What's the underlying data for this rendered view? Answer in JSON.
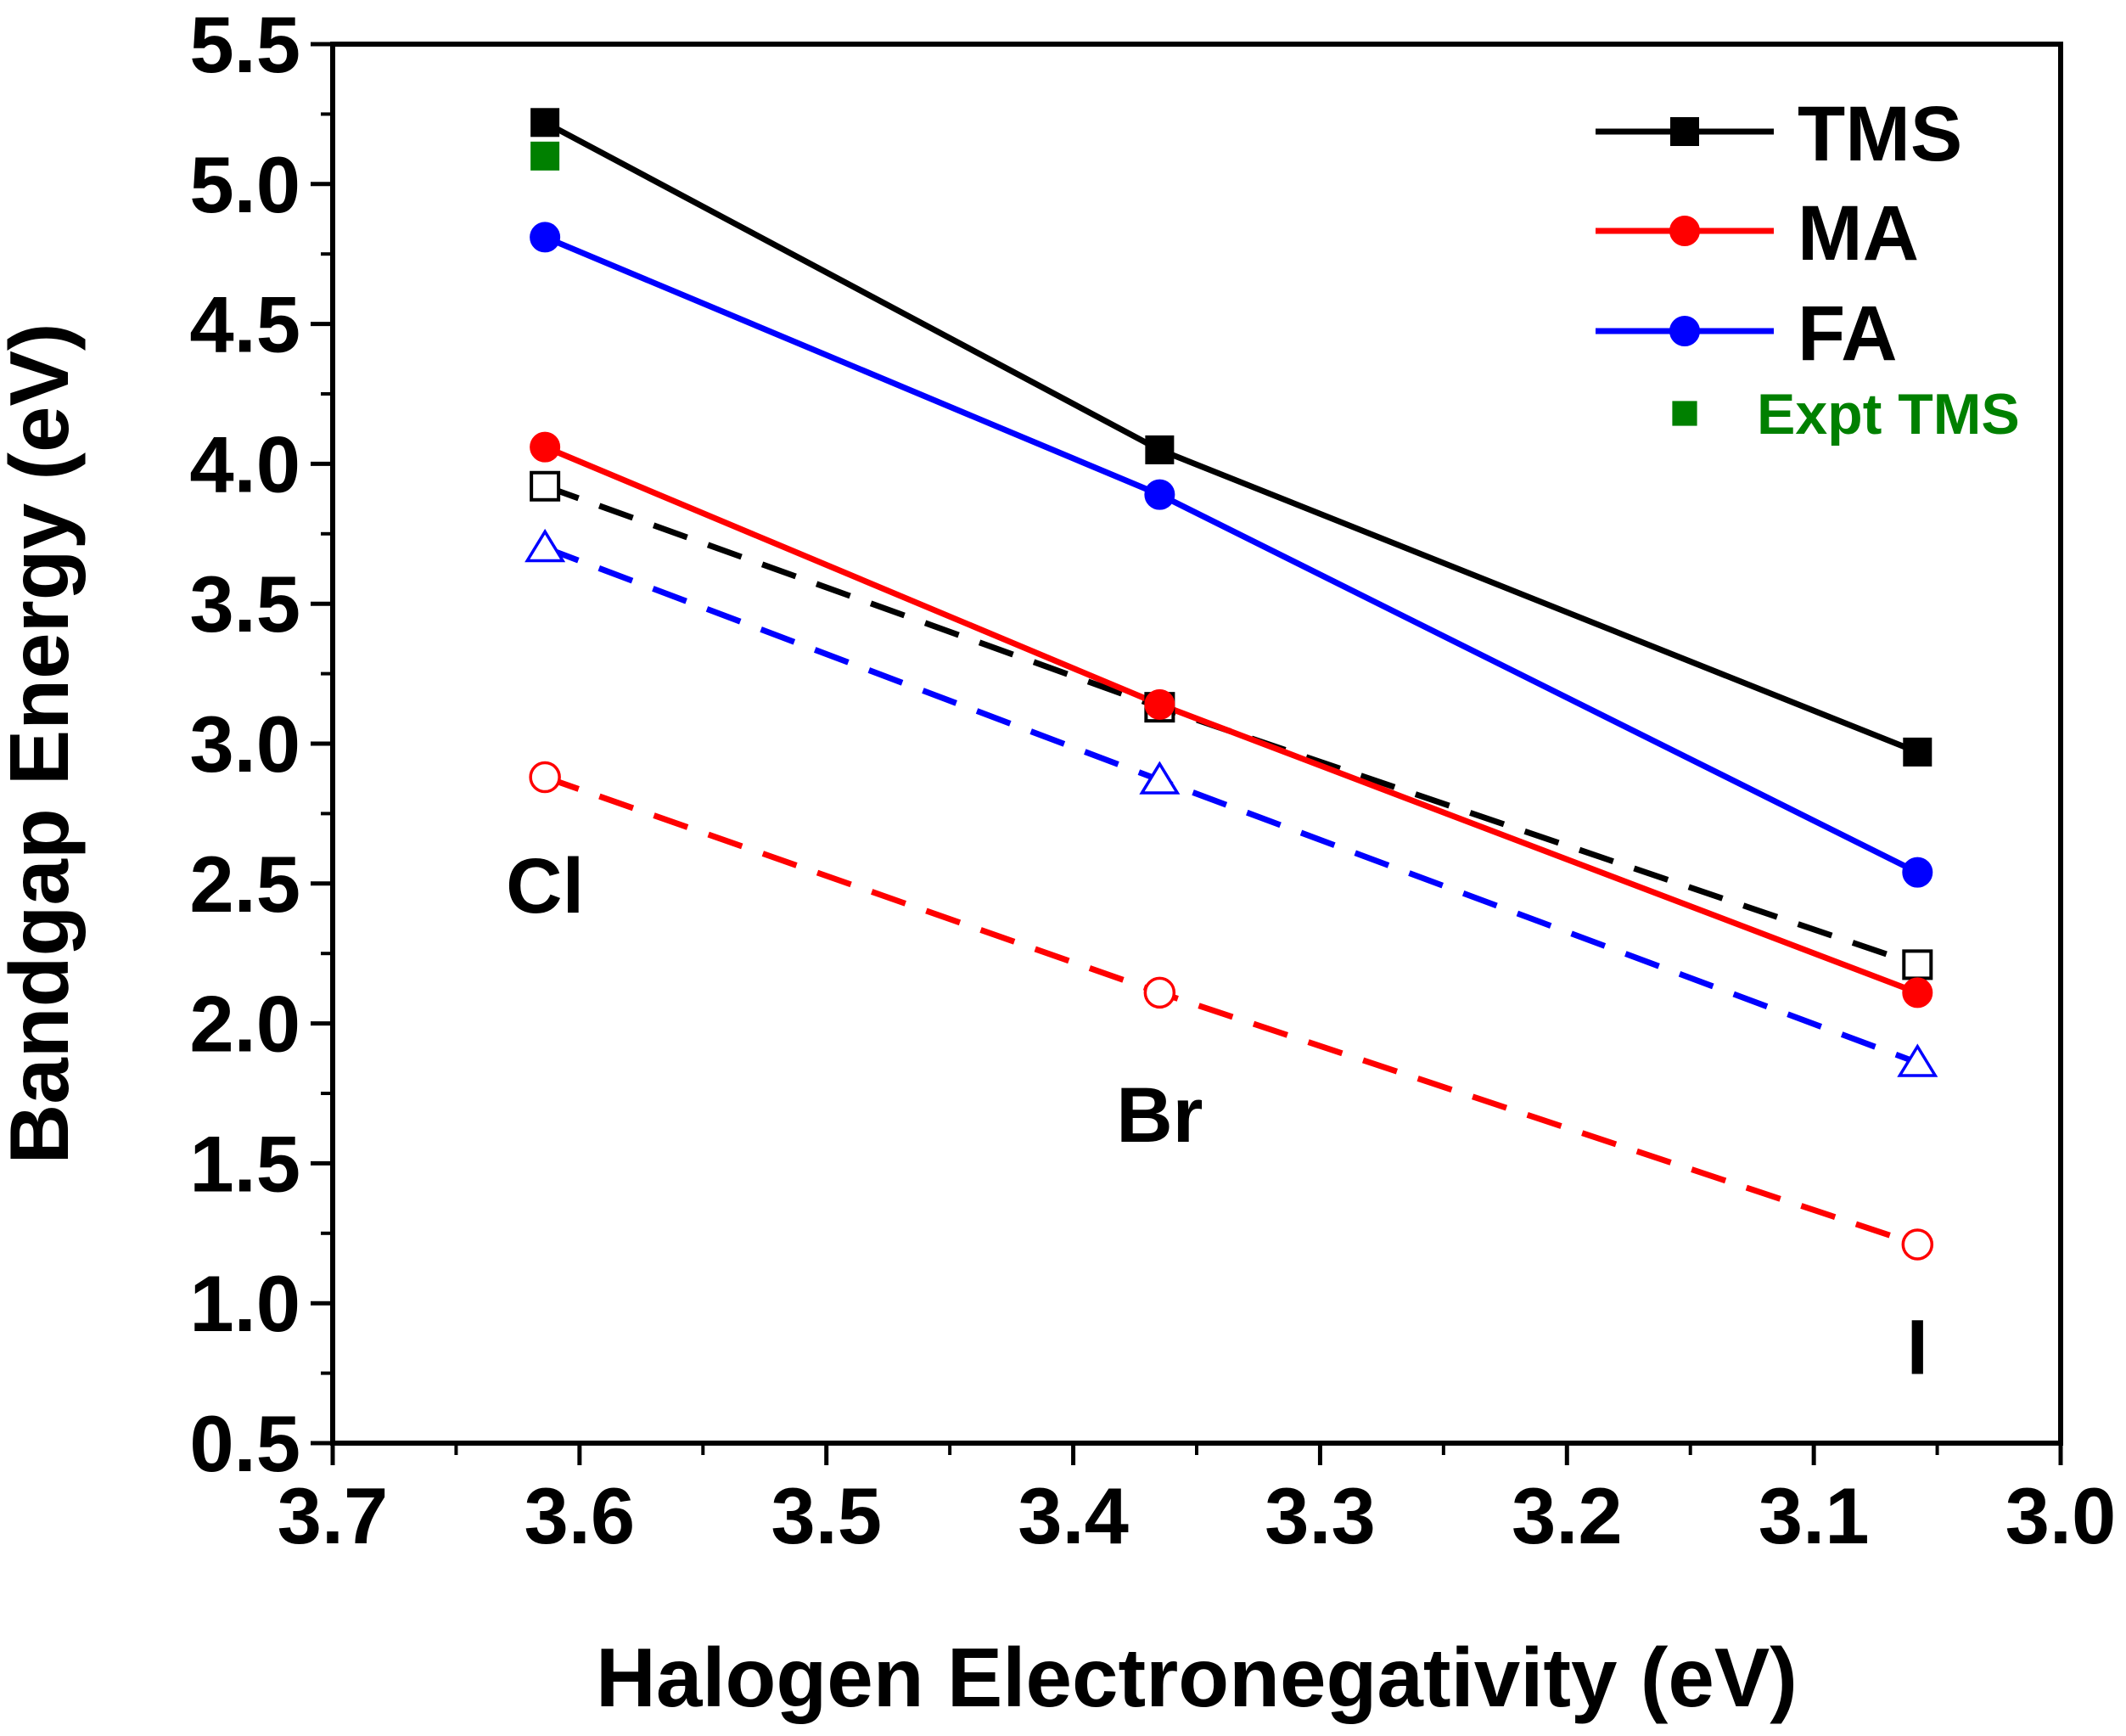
{
  "chart_data": {
    "type": "line",
    "title": "",
    "xlabel": "Halogen Electronegativity (eV)",
    "ylabel": "Bandgap Energy (eV)",
    "xlim": [
      3.7,
      3.0
    ],
    "ylim": [
      0.5,
      5.5
    ],
    "x_reversed": true,
    "x_ticks": [
      3.7,
      3.6,
      3.5,
      3.4,
      3.3,
      3.2,
      3.1,
      3.0
    ],
    "x_tick_labels": [
      "3.7",
      "3.6",
      "3.5",
      "3.4",
      "3.3",
      "3.2",
      "3.1",
      "3.0"
    ],
    "y_ticks": [
      0.5,
      1.0,
      1.5,
      2.0,
      2.5,
      3.0,
      3.5,
      4.0,
      4.5,
      5.0,
      5.5
    ],
    "y_tick_labels": [
      "0.5",
      "1.0",
      "1.5",
      "2.0",
      "2.5",
      "3.0",
      "3.5",
      "4.0",
      "4.5",
      "5.0",
      "5.5"
    ],
    "grid": false,
    "legend_position": "top-right",
    "x": [
      3.614,
      3.365,
      3.058
    ],
    "series": [
      {
        "name": "TMS",
        "values": [
          5.22,
          4.05,
          2.97
        ],
        "color": "#000000",
        "line": "solid",
        "marker": "square",
        "filled": true,
        "in_legend": true
      },
      {
        "name": "MA",
        "values": [
          4.06,
          3.14,
          2.11
        ],
        "color": "#ff0000",
        "line": "solid",
        "marker": "circle",
        "filled": true,
        "in_legend": true
      },
      {
        "name": "FA",
        "values": [
          4.81,
          3.89,
          2.54
        ],
        "color": "#0000ff",
        "line": "solid",
        "marker": "circle",
        "filled": true,
        "in_legend": true
      },
      {
        "name": "TMS (dashed)",
        "values": [
          3.92,
          3.13,
          2.21
        ],
        "color": "#000000",
        "line": "dashed",
        "marker": "square",
        "filled": false,
        "in_legend": false
      },
      {
        "name": "FA (dashed)",
        "values": [
          3.7,
          2.87,
          1.86
        ],
        "color": "#0000ff",
        "line": "dashed",
        "marker": "triangle",
        "filled": false,
        "in_legend": false
      },
      {
        "name": "MA (dashed)",
        "values": [
          2.88,
          2.11,
          1.21
        ],
        "color": "#ff0000",
        "line": "dashed",
        "marker": "circle",
        "filled": false,
        "in_legend": false
      }
    ],
    "expt": {
      "name": "Expt TMS",
      "x": 3.614,
      "y": 5.1,
      "color": "#008000",
      "marker": "square"
    },
    "annotations": [
      {
        "text": "Cl",
        "x": 3.614,
        "y": 2.5
      },
      {
        "text": "Br",
        "x": 3.365,
        "y": 1.68
      },
      {
        "text": "I",
        "x": 3.058,
        "y": 0.85
      }
    ]
  }
}
